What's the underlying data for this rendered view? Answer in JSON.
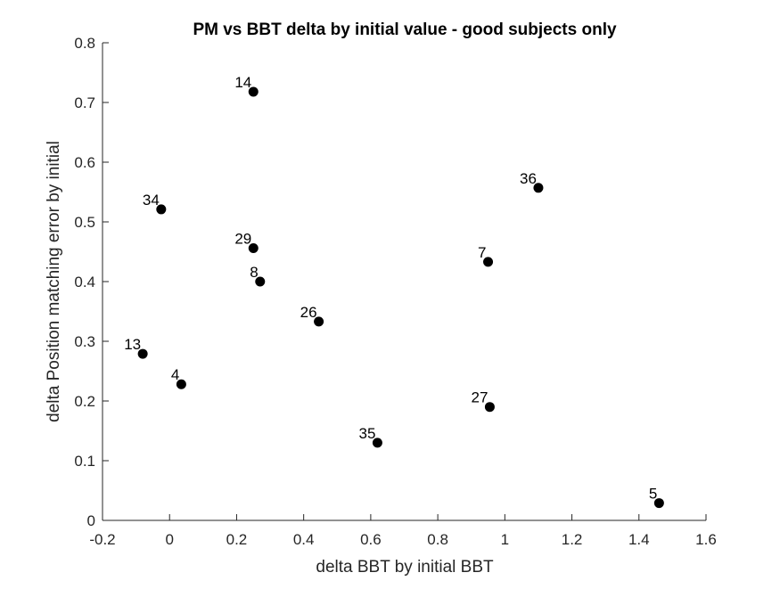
{
  "chart_data": {
    "type": "scatter",
    "title": "PM vs BBT delta by initial value - good subjects only",
    "xlabel": "delta BBT by initial BBT",
    "ylabel": "delta Position matching error by initial",
    "xlim": [
      -0.2,
      1.6
    ],
    "ylim": [
      0,
      0.8
    ],
    "xticks": [
      "-0.2",
      "0",
      "0.2",
      "0.4",
      "0.6",
      "0.8",
      "1",
      "1.2",
      "1.4",
      "1.6"
    ],
    "yticks": [
      "0",
      "0.1",
      "0.2",
      "0.3",
      "0.4",
      "0.5",
      "0.6",
      "0.7",
      "0.8"
    ],
    "grid": false,
    "marker_color": "#000000",
    "points": [
      {
        "label": "14",
        "x": 0.25,
        "y": 0.718
      },
      {
        "label": "36",
        "x": 1.1,
        "y": 0.557
      },
      {
        "label": "34",
        "x": -0.025,
        "y": 0.521
      },
      {
        "label": "29",
        "x": 0.25,
        "y": 0.456
      },
      {
        "label": "7",
        "x": 0.95,
        "y": 0.433
      },
      {
        "label": "8",
        "x": 0.27,
        "y": 0.4
      },
      {
        "label": "26",
        "x": 0.445,
        "y": 0.333
      },
      {
        "label": "13",
        "x": -0.08,
        "y": 0.279
      },
      {
        "label": "4",
        "x": 0.035,
        "y": 0.228
      },
      {
        "label": "27",
        "x": 0.955,
        "y": 0.19
      },
      {
        "label": "35",
        "x": 0.62,
        "y": 0.13
      },
      {
        "label": "5",
        "x": 1.46,
        "y": 0.029
      }
    ]
  }
}
